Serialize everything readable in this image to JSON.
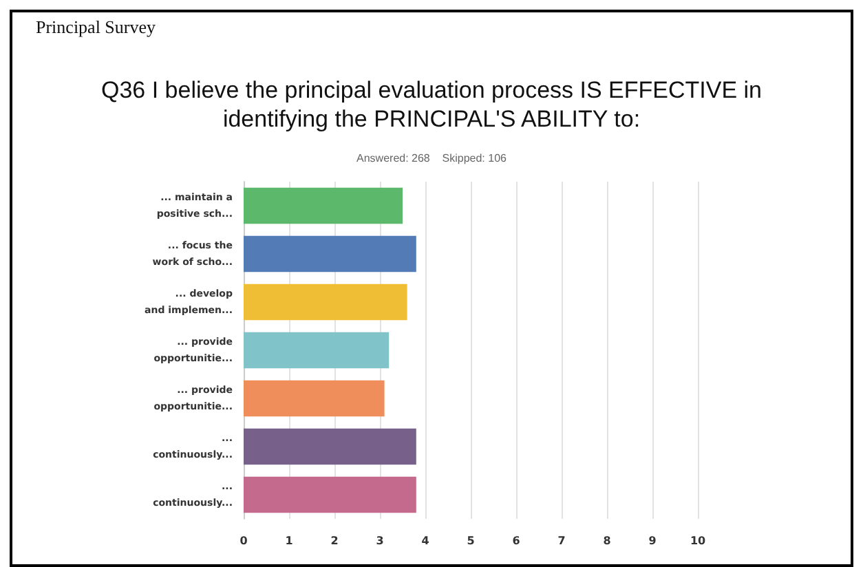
{
  "chart_data": {
    "type": "bar",
    "orientation": "horizontal",
    "title": "Q36 I believe the principal evaluation process IS EFFECTIVE in\nidentifying the PRINCIPAL'S ABILITY to:",
    "subtitle": "Answered: 268    Skipped: 106",
    "annotations": [
      "Principal Survey"
    ],
    "categories": [
      "... maintain a\npositive sch...",
      "... focus the\nwork of scho...",
      "... develop\nand implemen...",
      "... provide\nopportunitie...",
      "... provide\nopportunitie...",
      "...\ncontinuously...",
      "...\ncontinuously..."
    ],
    "values": [
      3.5,
      3.8,
      3.6,
      3.2,
      3.1,
      3.8,
      3.8
    ],
    "colors": [
      "#5cb96b",
      "#537bb5",
      "#efbe35",
      "#80c4c9",
      "#ef8e5a",
      "#77608a",
      "#c46a8c"
    ],
    "xlim": [
      0,
      10
    ],
    "xticks": [
      0,
      1,
      2,
      3,
      4,
      5,
      6,
      7,
      8,
      9,
      10
    ],
    "grid": "x"
  }
}
